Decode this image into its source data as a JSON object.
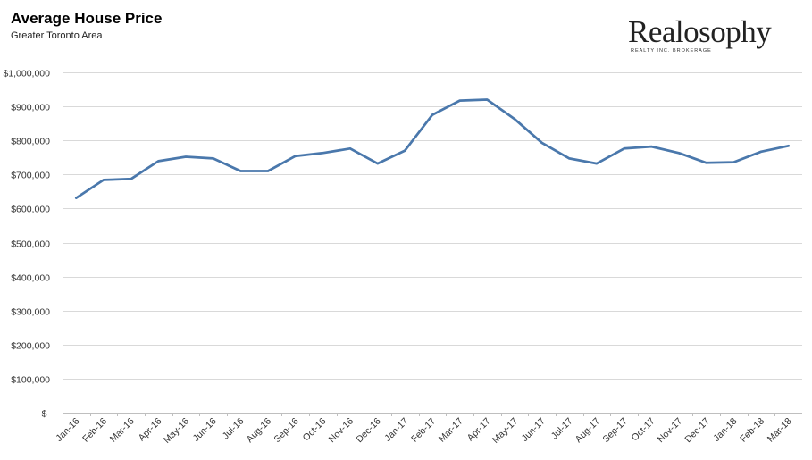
{
  "header": {
    "title": "Average House Price",
    "subtitle": "Greater Toronto Area"
  },
  "logo": {
    "name": "Realosophy",
    "tagline": "REALTY INC. BROKERAGE"
  },
  "colors": {
    "line": "#4a78ac",
    "grid": "#d9d9d9"
  },
  "chart_data": {
    "type": "line",
    "title": "Average House Price",
    "subtitle": "Greater Toronto Area",
    "xlabel": "",
    "ylabel": "",
    "grid": true,
    "ylim": [
      0,
      1000000
    ],
    "yticks": [
      0,
      100000,
      200000,
      300000,
      400000,
      500000,
      600000,
      700000,
      800000,
      900000,
      1000000
    ],
    "ytick_labels": [
      "$-",
      "$100,000",
      "$200,000",
      "$300,000",
      "$400,000",
      "$500,000",
      "$600,000",
      "$700,000",
      "$800,000",
      "$900,000",
      "$1,000,000"
    ],
    "categories": [
      "Jan-16",
      "Feb-16",
      "Mar-16",
      "Apr-16",
      "May-16",
      "Jun-16",
      "Jul-16",
      "Aug-16",
      "Sep-16",
      "Oct-16",
      "Nov-16",
      "Dec-16",
      "Jan-17",
      "Feb-17",
      "Mar-17",
      "Apr-17",
      "May-17",
      "Jun-17",
      "Jul-17",
      "Aug-17",
      "Sep-17",
      "Oct-17",
      "Nov-17",
      "Dec-17",
      "Jan-18",
      "Feb-18",
      "Mar-18"
    ],
    "series": [
      {
        "values": [
          631000,
          684000,
          687000,
          739000,
          752000,
          747000,
          710000,
          710000,
          754000,
          763000,
          776000,
          732000,
          770000,
          875000,
          917000,
          920000,
          863000,
          793000,
          747000,
          732000,
          776000,
          782000,
          763000,
          734000,
          736000,
          767000,
          784000
        ]
      }
    ]
  }
}
